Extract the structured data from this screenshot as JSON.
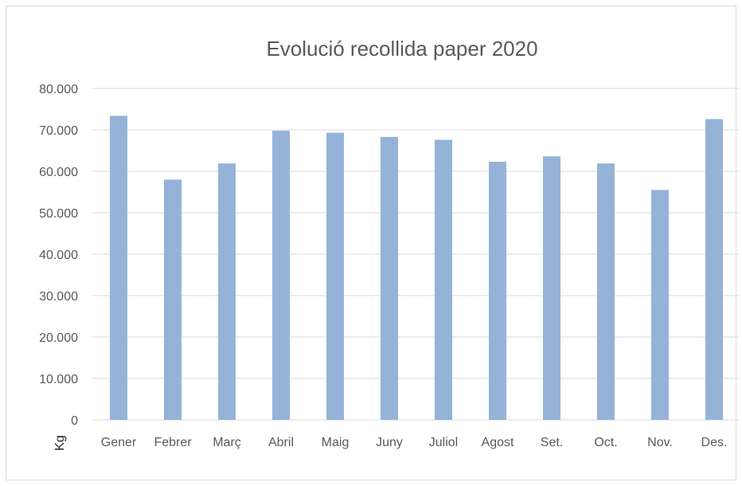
{
  "chart_data": {
    "type": "bar",
    "title": "Evolució recollida paper 2020",
    "xlabel": "",
    "ylabel": "Kg",
    "categories": [
      "Gener",
      "Febrer",
      "Març",
      "Abril",
      "Maig",
      "Juny",
      "Juliol",
      "Agost",
      "Set.",
      "Oct.",
      "Nov.",
      "Des."
    ],
    "values": [
      73400,
      58000,
      61900,
      69800,
      69300,
      68300,
      67600,
      62300,
      63600,
      61900,
      55500,
      72600
    ],
    "ylim": [
      0,
      80000
    ],
    "yticks": [
      0,
      10000,
      20000,
      30000,
      40000,
      50000,
      60000,
      70000,
      80000
    ],
    "ytick_labels": [
      "0",
      "10.000",
      "20.000",
      "30.000",
      "40.000",
      "50.000",
      "60.000",
      "70.000",
      "80.000"
    ],
    "grid": true,
    "legend": "none",
    "bar_color": "#95b3d7"
  }
}
